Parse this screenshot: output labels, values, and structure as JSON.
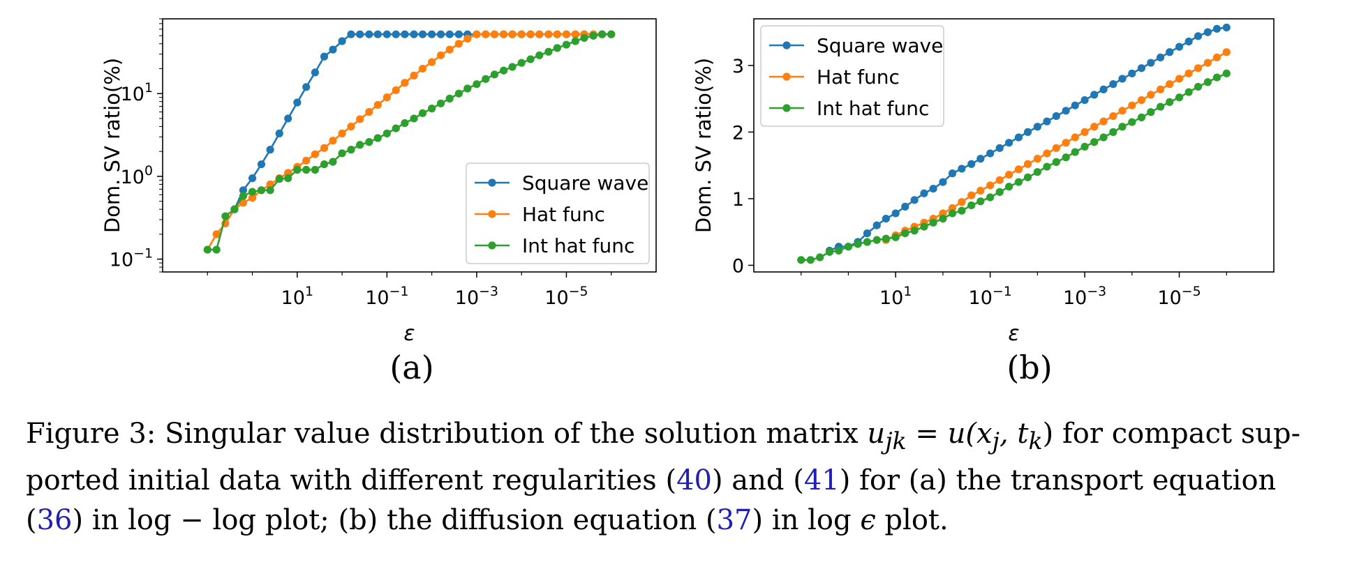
{
  "chart_data": [
    {
      "type": "line",
      "subplot_label": "(a)",
      "xlabel": "ε",
      "ylabel": "Dom. SV ratio(%)",
      "x_scale": "log-reversed",
      "y_scale": "log",
      "xlim": [
        10000,
        1e-07
      ],
      "ylim": [
        0.07,
        80
      ],
      "xticks": [
        {
          "value": 10,
          "label": "10",
          "exp": "1"
        },
        {
          "value": 0.1,
          "label": "10",
          "exp": "−1"
        },
        {
          "value": 0.001,
          "label": "10",
          "exp": "−3"
        },
        {
          "value": 1e-05,
          "label": "10",
          "exp": "−5"
        }
      ],
      "yticks": [
        {
          "value": 0.1,
          "label": "10",
          "exp": "−1"
        },
        {
          "value": 1,
          "label": "10",
          "exp": "0"
        },
        {
          "value": 10,
          "label": "10",
          "exp": "1"
        }
      ],
      "legend_position": "lower-right",
      "grid": false,
      "x": [
        1000,
        630,
        400,
        250,
        160,
        100,
        63,
        40,
        25,
        16,
        10,
        6.3,
        4,
        2.5,
        1.6,
        1,
        0.63,
        0.4,
        0.25,
        0.16,
        0.1,
        0.063,
        0.04,
        0.025,
        0.016,
        0.01,
        0.0063,
        0.004,
        0.0025,
        0.0016,
        0.001,
        0.00063,
        0.0004,
        0.00025,
        0.00016,
        0.0001,
        6.3e-05,
        4e-05,
        2.5e-05,
        1.6e-05,
        1e-05,
        6.3e-06,
        4e-06,
        2.5e-06,
        1.6e-06,
        1e-06
      ],
      "series": [
        {
          "name": "Square wave",
          "color": "#1f77b4",
          "values": [
            null,
            null,
            null,
            0.4,
            0.68,
            0.95,
            1.4,
            2.1,
            3.3,
            5.0,
            7.8,
            12,
            18,
            28,
            34,
            43,
            52,
            52,
            52,
            52,
            52,
            52,
            52,
            52,
            52,
            52,
            52,
            52,
            52,
            52,
            52,
            52,
            52,
            52,
            52,
            52,
            52,
            52,
            52,
            52,
            52,
            52,
            52,
            52,
            52,
            52
          ]
        },
        {
          "name": "Hat func",
          "color": "#ff7f0e",
          "values": [
            0.13,
            0.2,
            0.27,
            0.4,
            0.48,
            0.55,
            0.68,
            0.8,
            0.95,
            1.1,
            1.3,
            1.55,
            1.85,
            2.2,
            2.7,
            3.3,
            4.0,
            4.9,
            6.0,
            7.3,
            9.0,
            11,
            13.5,
            16.5,
            20,
            24,
            29,
            34,
            40,
            46,
            52,
            52,
            52,
            52,
            52,
            52,
            52,
            52,
            52,
            52,
            52,
            52,
            52,
            52,
            52,
            52
          ]
        },
        {
          "name": "Int hat func",
          "color": "#2ca02c",
          "values": [
            0.13,
            0.13,
            0.33,
            0.4,
            0.58,
            0.65,
            0.68,
            0.68,
            0.93,
            0.95,
            1.2,
            1.2,
            1.2,
            1.4,
            1.5,
            1.9,
            2.1,
            2.4,
            2.6,
            2.9,
            3.3,
            3.8,
            4.4,
            5.0,
            5.8,
            6.6,
            7.6,
            8.7,
            10,
            11.5,
            13,
            15,
            17,
            19,
            21,
            23.5,
            26,
            29,
            32,
            35.5,
            39,
            43,
            47,
            50,
            52,
            52
          ]
        }
      ]
    },
    {
      "type": "line",
      "subplot_label": "(b)",
      "xlabel": "ε",
      "ylabel": "Dom. SV ratio(%)",
      "x_scale": "log-reversed",
      "y_scale": "linear",
      "xlim": [
        10000,
        1e-07
      ],
      "ylim": [
        -0.1,
        3.7
      ],
      "xticks": [
        {
          "value": 10,
          "label": "10",
          "exp": "1"
        },
        {
          "value": 0.1,
          "label": "10",
          "exp": "−1"
        },
        {
          "value": 0.001,
          "label": "10",
          "exp": "−3"
        },
        {
          "value": 1e-05,
          "label": "10",
          "exp": "−5"
        }
      ],
      "yticks": [
        {
          "value": 0,
          "label": "0"
        },
        {
          "value": 1,
          "label": "1"
        },
        {
          "value": 2,
          "label": "2"
        },
        {
          "value": 3,
          "label": "3"
        }
      ],
      "legend_position": "top-left",
      "grid": false,
      "x": [
        1000,
        630,
        400,
        250,
        160,
        100,
        63,
        40,
        25,
        16,
        10,
        6.3,
        4,
        2.5,
        1.6,
        1,
        0.63,
        0.4,
        0.25,
        0.16,
        0.1,
        0.063,
        0.04,
        0.025,
        0.016,
        0.01,
        0.0063,
        0.004,
        0.0025,
        0.0016,
        0.001,
        0.00063,
        0.0004,
        0.00025,
        0.00016,
        0.0001,
        6.3e-05,
        4e-05,
        2.5e-05,
        1.6e-05,
        1e-05,
        6.3e-06,
        4e-06,
        2.5e-06,
        1.6e-06,
        1e-06
      ],
      "series": [
        {
          "name": "Square wave",
          "color": "#1f77b4",
          "values": [
            null,
            null,
            null,
            0.22,
            0.28,
            0.28,
            0.35,
            0.48,
            0.6,
            0.7,
            0.78,
            0.88,
            0.98,
            1.08,
            1.15,
            1.25,
            1.38,
            1.45,
            1.52,
            1.6,
            1.68,
            1.76,
            1.84,
            1.92,
            2.0,
            2.08,
            2.16,
            2.24,
            2.32,
            2.4,
            2.48,
            2.56,
            2.64,
            2.72,
            2.8,
            2.88,
            2.96,
            3.04,
            3.12,
            3.2,
            3.28,
            3.36,
            3.44,
            3.5,
            3.55,
            3.57
          ]
        },
        {
          "name": "Hat func",
          "color": "#ff7f0e",
          "values": [
            null,
            null,
            null,
            null,
            null,
            null,
            null,
            null,
            null,
            0.38,
            0.45,
            0.52,
            0.58,
            0.64,
            0.7,
            0.78,
            0.86,
            0.95,
            1.05,
            1.12,
            1.2,
            1.28,
            1.36,
            1.44,
            1.52,
            1.6,
            1.68,
            1.76,
            1.84,
            1.92,
            2.0,
            2.08,
            2.16,
            2.24,
            2.32,
            2.4,
            2.48,
            2.56,
            2.64,
            2.72,
            2.8,
            2.88,
            2.96,
            3.04,
            3.12,
            3.2
          ]
        },
        {
          "name": "Int hat func",
          "color": "#2ca02c",
          "values": [
            0.08,
            0.08,
            0.12,
            0.2,
            0.22,
            0.28,
            0.32,
            0.35,
            0.38,
            0.4,
            0.42,
            0.48,
            0.52,
            0.58,
            0.64,
            0.7,
            0.78,
            0.82,
            0.9,
            0.96,
            1.02,
            1.1,
            1.18,
            1.25,
            1.32,
            1.4,
            1.48,
            1.55,
            1.62,
            1.7,
            1.78,
            1.85,
            1.92,
            2.0,
            2.08,
            2.15,
            2.22,
            2.3,
            2.38,
            2.45,
            2.52,
            2.6,
            2.68,
            2.75,
            2.82,
            2.88
          ]
        }
      ]
    }
  ],
  "caption": {
    "lead": "Figure 3: Singular value distribution of the solution matrix ",
    "math_eq": "u",
    "math_sub1": "jk",
    "math_mid": " = u(x",
    "math_sub2": "j",
    "math_mid2": ", t",
    "math_sub3": "k",
    "math_end": ")",
    "part2": " for compact sup-ported initial data with different regularities (",
    "ref1": "40",
    "part3": ") and (",
    "ref2": "41",
    "part4": ") for (a) the transport equation (",
    "ref3": "36",
    "part5": ") in log − log plot; (b) the diffusion equation (",
    "ref4": "37",
    "part6": ") in log ",
    "math_eps": "ϵ",
    "part7": " plot."
  }
}
